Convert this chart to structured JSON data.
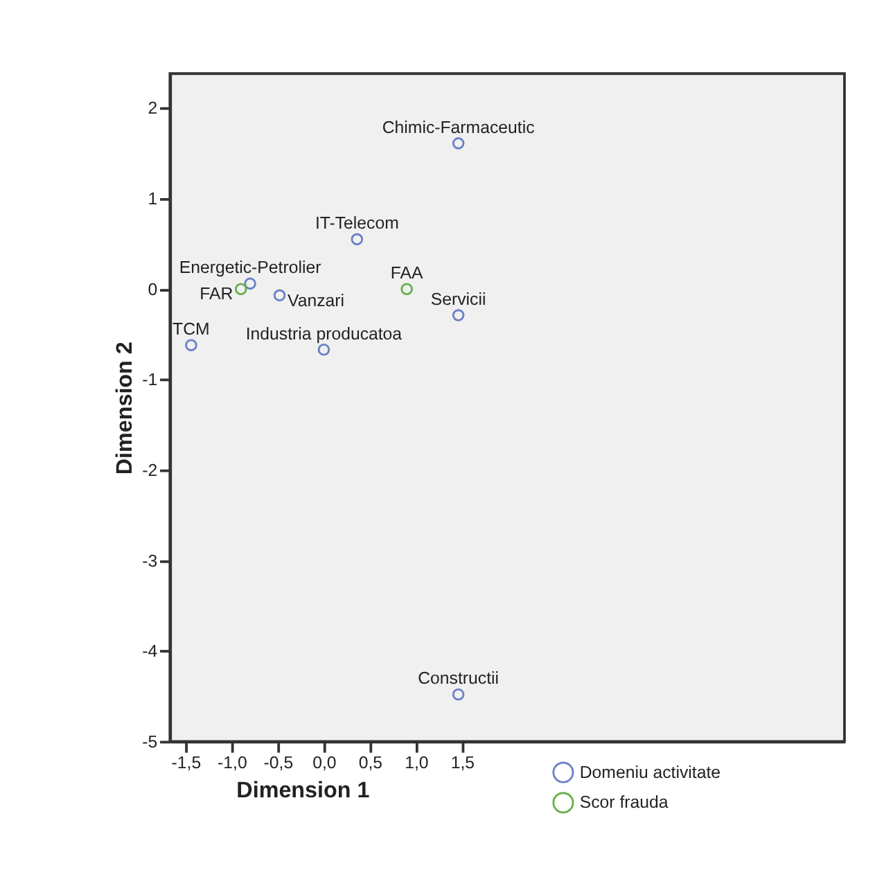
{
  "chart_data": {
    "type": "scatter",
    "xlabel": "Dimension 1",
    "ylabel": "Dimension 2",
    "series": [
      {
        "name": "Domeniu activitate",
        "color": "#6a82c8",
        "x": [
          1.46,
          0.36,
          -0.8,
          -0.48,
          1.46,
          -1.44,
          0.0,
          1.46
        ],
        "values": [
          1.61,
          0.55,
          0.06,
          -0.07,
          -0.29,
          -0.62,
          -0.67,
          -4.48
        ]
      },
      {
        "name": "Scor frauda",
        "color": "#6ab04a",
        "x": [
          -0.9,
          0.9
        ],
        "values": [
          0.0,
          0.0
        ]
      }
    ],
    "annotations": [
      {
        "text": "Chimic-Farmaceutic",
        "x": 1.46,
        "y": 1.61
      },
      {
        "text": "IT-Telecom",
        "x": 0.36,
        "y": 0.55
      },
      {
        "text": "Energetic-Petrolier",
        "x": -0.8,
        "y": 0.06
      },
      {
        "text": "FAR",
        "x": -0.9,
        "y": 0.0
      },
      {
        "text": "Vanzari",
        "x": -0.48,
        "y": -0.07
      },
      {
        "text": "FAA",
        "x": 0.9,
        "y": 0.0
      },
      {
        "text": "Servicii",
        "x": 1.46,
        "y": -0.29
      },
      {
        "text": "TCM",
        "x": -1.44,
        "y": -0.62
      },
      {
        "text": "Industria producatoa",
        "x": 0.0,
        "y": -0.67
      },
      {
        "text": "Constructii",
        "x": 1.46,
        "y": -4.48
      }
    ],
    "xlim": [
      -1.67,
      5.65
    ],
    "xticks": [
      {
        "value": -1.5,
        "label": "-1,5"
      },
      {
        "value": -1.0,
        "label": "-1,0"
      },
      {
        "value": -0.5,
        "label": "-0,5"
      },
      {
        "value": 0.0,
        "label": "0,0"
      },
      {
        "value": 0.5,
        "label": "0,5"
      },
      {
        "value": 1.0,
        "label": "1,0"
      },
      {
        "value": 1.5,
        "label": "1,5"
      }
    ],
    "ylim": [
      -5,
      2.38
    ],
    "yticks": [
      -5,
      -4,
      -3,
      -2,
      -1,
      0,
      1,
      2
    ],
    "grid": false,
    "legend": "bottom right",
    "marker": "circle"
  }
}
